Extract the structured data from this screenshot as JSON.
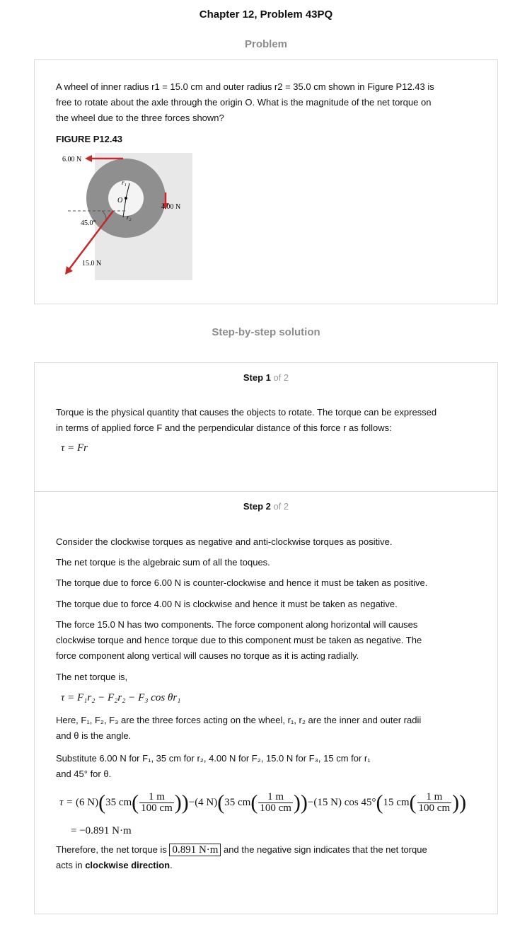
{
  "header": {
    "title": "Chapter 12, Problem 43PQ"
  },
  "problem": {
    "section_label": "Problem",
    "text_lines": [
      "A wheel of inner radius r1 = 15.0 cm and outer radius r2 = 35.0 cm shown in Figure P12.43 is",
      "free to rotate about the axle through the origin O. What is the magnitude of the net torque on",
      "the wheel due to the three forces shown?"
    ],
    "figure_label": "FIGURE P12.43",
    "figure": {
      "force_top": "6.00 N",
      "force_right": "4.00 N",
      "force_diag": "15.0 N",
      "angle": "45.0°",
      "label_r1": "r₁",
      "label_r2": "r₂",
      "label_origin": "O"
    }
  },
  "solution": {
    "section_label": "Step-by-step solution",
    "step1": {
      "label": "Step 1",
      "of": " of 2",
      "lines": [
        "Torque is the physical quantity that causes the objects to rotate. The torque can be expressed",
        "in terms of applied force F and the perpendicular distance of this force r as follows:"
      ],
      "formula": "τ = Fr"
    },
    "step2": {
      "label": "Step 2",
      "of": " of 2",
      "line1": "Consider the clockwise torques as negative and anti-clockwise torques as positive.",
      "line2": "The net torque is the algebraic sum of all the toques.",
      "line3": "The torque due to force 6.00 N is counter-clockwise and hence it must be taken as positive.",
      "line4": "The torque due to force 4.00 N is clockwise and hence it must be taken as negative.",
      "line5a": "The force 15.0 N has two components. The force component along horizontal will causes",
      "line5b": "clockwise torque and hence torque due to this component must be taken as negative. The",
      "line5c": "force component along vertical will causes no torque as it is acting radially.",
      "line6": "The net torque is,",
      "formula": "τ = F₁r₂ − F₂r₂ − F₃ cos θr₁",
      "here_a": "Here,  F₁, F₂, F₃  are the three forces acting on the wheel,  r₁, r₂ are the inner and outer radii",
      "here_b": "and  θ  is the angle.",
      "subst_a": "Substitute  6.00 N  for  F₁,  35 cm  for  r₂,  4.00 N  for  F₂,  15.0 N  for  F₃,  15 cm  for  r₁",
      "subst_b": "and  45°  for  θ.",
      "calc": {
        "tau": "τ = ",
        "t1_force": "(6 N)",
        "t1_len": "35 cm",
        "minus": "−",
        "t2_force": "(4 N)",
        "t2_len": "35 cm",
        "t3_force": "(15 N) cos 45°",
        "t3_len": "15 cm",
        "frac_num": "1 m",
        "frac_den": "100 cm"
      },
      "result": "= −0.891 N·m",
      "therefore_pre": "Therefore, the net torque is ",
      "answer": "0.891 N·m",
      "therefore_post": " and the negative sign indicates that the net torque",
      "acts_pre": "acts in ",
      "acts_bold": "clockwise direction",
      "acts_post": "."
    }
  }
}
